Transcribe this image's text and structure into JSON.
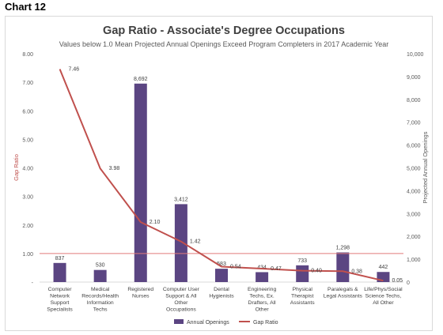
{
  "heading": "Chart 12",
  "chart_data": {
    "type": "bar",
    "title": "Gap Ratio - Associate's Degree Occupations",
    "subtitle": "Values below 1.0 Mean Projected Annual Openings Exceed Program Completers  in 2017 Academic Year",
    "ylabel_left": "Gap Ratio",
    "ylabel_right": "Projected Annual Openings",
    "ylim_left": [
      0,
      8
    ],
    "ylim_right": [
      0,
      10000
    ],
    "yticks_left": [
      "-",
      "1.00",
      "2.00",
      "3.00",
      "4.00",
      "5.00",
      "6.00",
      "7.00",
      "8.00"
    ],
    "yticks_right": [
      "0",
      "1,000",
      "2,000",
      "3,000",
      "4,000",
      "5,000",
      "6,000",
      "7,000",
      "8,000",
      "9,000",
      "10,000"
    ],
    "categories": [
      [
        "Computer",
        "Network",
        "Support",
        "Specialists"
      ],
      [
        "Medical",
        "Records/Health",
        "Information",
        "Techs"
      ],
      [
        "Registered",
        "Nurses"
      ],
      [
        "Computer User",
        "Support & All",
        "Other",
        "Occupations"
      ],
      [
        "Dental",
        "Hygienists"
      ],
      [
        "Engineering",
        "Techs, Ex.",
        "Drafters, All",
        "Other"
      ],
      [
        "Physical",
        "Therapist",
        "Assistants"
      ],
      [
        "Paralegals &",
        "Legal Assistants"
      ],
      [
        "Life/Phys/Social",
        "Science Techs,",
        "All Other"
      ]
    ],
    "series": [
      {
        "name": "Annual Openings",
        "type": "bar",
        "axis": "right",
        "values": [
          837,
          530,
          8692,
          3412,
          583,
          434,
          733,
          1298,
          442
        ],
        "labels": [
          "837",
          "530",
          "8,692",
          "3,412",
          "583",
          "434",
          "733",
          "1,298",
          "442"
        ]
      },
      {
        "name": "Gap Ratio",
        "type": "line",
        "axis": "left",
        "values": [
          7.46,
          3.98,
          2.1,
          1.42,
          0.54,
          0.47,
          0.4,
          0.38,
          0.05
        ],
        "labels": [
          "7.46",
          "3.98",
          "2.10",
          "1.42",
          "0.54",
          "0.47",
          "0.40",
          "0.38",
          "0.05"
        ]
      }
    ],
    "reference_line": 1.0,
    "grid": false,
    "legend_position": "bottom",
    "colors": {
      "bars": "#5b4582",
      "line": "#c0504d",
      "reference": "#e07b7b",
      "ylabel_left": "#c0504d"
    }
  }
}
